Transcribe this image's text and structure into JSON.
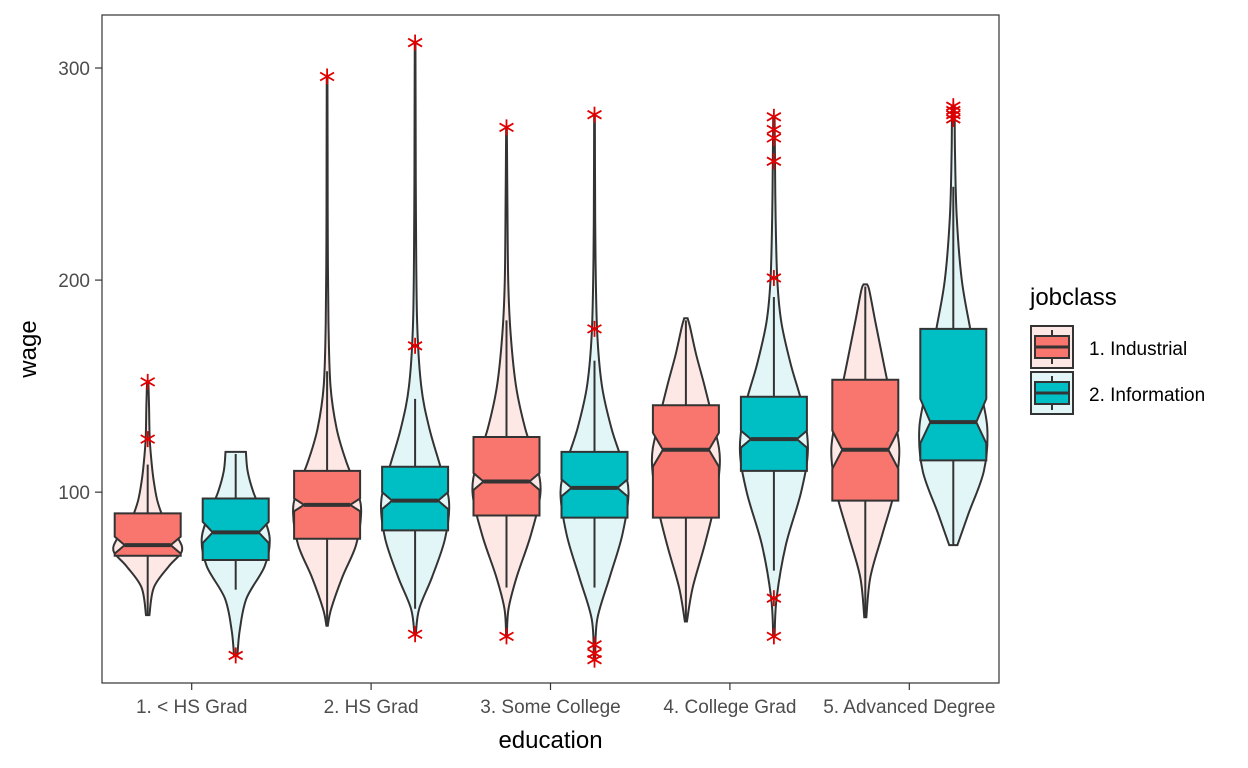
{
  "chart_data": {
    "type": "violin+boxplot",
    "xlabel": "education",
    "ylabel": "wage",
    "ylim": [
      10,
      325
    ],
    "yticks": [
      100,
      200,
      300
    ],
    "categories": [
      "1. < HS Grad",
      "2. HS Grad",
      "3. Some College",
      "4. College Grad",
      "5. Advanced Degree"
    ],
    "legend": {
      "title": "jobclass",
      "position": "right",
      "items": [
        {
          "label": "1. Industrial",
          "color": "#F8766D"
        },
        {
          "label": "2. Information",
          "color": "#00BFC4"
        }
      ]
    },
    "colors": {
      "industrial_box": "#F8766D",
      "information_box": "#00BFC4",
      "industrial_violin": "#FDE8E6",
      "information_violin": "#E2F6F7",
      "outlier": "#E00000",
      "line": "#333333"
    },
    "grid": false,
    "series": [
      {
        "name": "1. Industrial",
        "groups": [
          {
            "category": "1. < HS Grad",
            "q1": 70,
            "median": 75,
            "q3": 90,
            "notch_lo": 71,
            "notch_hi": 79,
            "min": 42,
            "max": 113,
            "outliers": [
              152,
              125
            ],
            "violin": [
              [
                42,
                0.05
              ],
              [
                55,
                0.18
              ],
              [
                65,
                0.62
              ],
              [
                72,
                1.0
              ],
              [
                78,
                0.9
              ],
              [
                85,
                0.55
              ],
              [
                95,
                0.3
              ],
              [
                105,
                0.18
              ],
              [
                113,
                0.12
              ],
              [
                125,
                0.06
              ],
              [
                140,
                0.04
              ],
              [
                152,
                0.02
              ]
            ]
          },
          {
            "category": "2. HS Grad",
            "q1": 78,
            "median": 94,
            "q3": 110,
            "notch_lo": 91,
            "notch_hi": 97,
            "min": 37,
            "max": 157,
            "outliers": [
              296
            ],
            "violin": [
              [
                37,
                0.02
              ],
              [
                45,
                0.12
              ],
              [
                60,
                0.45
              ],
              [
                75,
                0.85
              ],
              [
                90,
                1.0
              ],
              [
                100,
                0.9
              ],
              [
                115,
                0.55
              ],
              [
                130,
                0.28
              ],
              [
                150,
                0.1
              ],
              [
                180,
                0.04
              ],
              [
                220,
                0.02
              ],
              [
                260,
                0.015
              ],
              [
                296,
                0.01
              ]
            ]
          },
          {
            "category": "3. Some College",
            "q1": 89,
            "median": 105,
            "q3": 126,
            "notch_lo": 101,
            "notch_hi": 109,
            "min": 55,
            "max": 181,
            "outliers": [
              272,
              32
            ],
            "violin": [
              [
                32,
                0.01
              ],
              [
                45,
                0.06
              ],
              [
                60,
                0.3
              ],
              [
                80,
                0.72
              ],
              [
                100,
                1.0
              ],
              [
                115,
                0.85
              ],
              [
                130,
                0.55
              ],
              [
                150,
                0.28
              ],
              [
                175,
                0.12
              ],
              [
                200,
                0.05
              ],
              [
                240,
                0.025
              ],
              [
                272,
                0.01
              ]
            ]
          },
          {
            "category": "4. College Grad",
            "q1": 88,
            "median": 120,
            "q3": 141,
            "notch_lo": 112,
            "notch_hi": 128,
            "min": 39,
            "max": 181,
            "outliers": [],
            "violin": [
              [
                39,
                0.03
              ],
              [
                55,
                0.2
              ],
              [
                75,
                0.55
              ],
              [
                95,
                0.85
              ],
              [
                115,
                1.0
              ],
              [
                130,
                0.85
              ],
              [
                150,
                0.55
              ],
              [
                165,
                0.3
              ],
              [
                178,
                0.12
              ],
              [
                182,
                0.05
              ]
            ]
          },
          {
            "category": "5. Advanced Degree",
            "q1": 96,
            "median": 120,
            "q3": 153,
            "notch_lo": 111,
            "notch_hi": 129,
            "min": 41,
            "max": 197,
            "outliers": [],
            "violin": [
              [
                41,
                0.03
              ],
              [
                60,
                0.15
              ],
              [
                80,
                0.5
              ],
              [
                100,
                0.85
              ],
              [
                120,
                1.0
              ],
              [
                140,
                0.8
              ],
              [
                160,
                0.55
              ],
              [
                180,
                0.3
              ],
              [
                195,
                0.12
              ],
              [
                198,
                0.05
              ]
            ]
          }
        ]
      },
      {
        "name": "2. Information",
        "groups": [
          {
            "category": "1. < HS Grad",
            "q1": 68,
            "median": 81,
            "q3": 97,
            "notch_lo": 76,
            "notch_hi": 86,
            "min": 54,
            "max": 118,
            "outliers": [
              23
            ],
            "violin": [
              [
                23,
                0.05
              ],
              [
                35,
                0.12
              ],
              [
                50,
                0.32
              ],
              [
                65,
                0.85
              ],
              [
                78,
                1.0
              ],
              [
                90,
                0.78
              ],
              [
                100,
                0.52
              ],
              [
                110,
                0.35
              ],
              [
                119,
                0.3
              ]
            ]
          },
          {
            "category": "2. HS Grad",
            "q1": 82,
            "median": 96,
            "q3": 112,
            "notch_lo": 92,
            "notch_hi": 100,
            "min": 45,
            "max": 144,
            "outliers": [
              312,
              169,
              33
            ],
            "violin": [
              [
                33,
                0.02
              ],
              [
                45,
                0.12
              ],
              [
                60,
                0.5
              ],
              [
                78,
                0.88
              ],
              [
                95,
                1.0
              ],
              [
                110,
                0.78
              ],
              [
                130,
                0.42
              ],
              [
                150,
                0.18
              ],
              [
                180,
                0.06
              ],
              [
                230,
                0.025
              ],
              [
                280,
                0.015
              ],
              [
                312,
                0.01
              ]
            ]
          },
          {
            "category": "3. Some College",
            "q1": 88,
            "median": 102,
            "q3": 119,
            "notch_lo": 98,
            "notch_hi": 106,
            "min": 55,
            "max": 162,
            "outliers": [
              278,
              177,
              28,
              24,
              21
            ],
            "violin": [
              [
                21,
                0.02
              ],
              [
                40,
                0.08
              ],
              [
                60,
                0.45
              ],
              [
                80,
                0.82
              ],
              [
                100,
                1.0
              ],
              [
                115,
                0.8
              ],
              [
                130,
                0.5
              ],
              [
                150,
                0.22
              ],
              [
                175,
                0.08
              ],
              [
                210,
                0.03
              ],
              [
                250,
                0.015
              ],
              [
                278,
                0.01
              ]
            ]
          },
          {
            "category": "4. College Grad",
            "q1": 110,
            "median": 125,
            "q3": 145,
            "notch_lo": 121,
            "notch_hi": 129,
            "min": 63,
            "max": 192,
            "outliers": [
              277,
              271,
              267,
              256,
              201,
              50,
              32
            ],
            "violin": [
              [
                32,
                0.02
              ],
              [
                50,
                0.08
              ],
              [
                75,
                0.35
              ],
              [
                100,
                0.8
              ],
              [
                120,
                1.0
              ],
              [
                140,
                0.85
              ],
              [
                160,
                0.5
              ],
              [
                180,
                0.22
              ],
              [
                200,
                0.1
              ],
              [
                230,
                0.05
              ],
              [
                260,
                0.03
              ],
              [
                277,
                0.02
              ]
            ]
          },
          {
            "category": "5. Advanced Degree",
            "q1": 115,
            "median": 133,
            "q3": 177,
            "notch_lo": 123,
            "notch_hi": 144,
            "min": 75,
            "max": 244,
            "outliers": [
              282,
              280,
              278,
              276
            ],
            "violin": [
              [
                75,
                0.12
              ],
              [
                90,
                0.45
              ],
              [
                110,
                0.9
              ],
              [
                130,
                1.0
              ],
              [
                150,
                0.78
              ],
              [
                175,
                0.52
              ],
              [
                200,
                0.25
              ],
              [
                230,
                0.1
              ],
              [
                260,
                0.05
              ],
              [
                282,
                0.04
              ]
            ]
          }
        ]
      }
    ]
  }
}
